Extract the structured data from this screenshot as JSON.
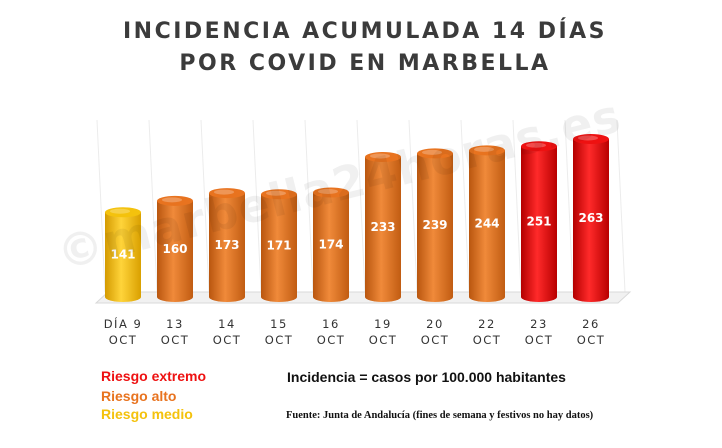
{
  "chart_data": {
    "type": "bar",
    "title_lines": [
      "INCIDENCIA ACUMULADA 14 DÍAS",
      "POR COVID EN MARBELLA"
    ],
    "categories": [
      [
        "DÍA 9",
        "OCT"
      ],
      [
        "13",
        "OCT"
      ],
      [
        "14",
        "OCT"
      ],
      [
        "15",
        "OCT"
      ],
      [
        "16",
        "OCT"
      ],
      [
        "19",
        "OCT"
      ],
      [
        "20",
        "OCT"
      ],
      [
        "22",
        "OCT"
      ],
      [
        "23",
        "OCT"
      ],
      [
        "26",
        "OCT"
      ]
    ],
    "values": [
      141,
      160,
      173,
      171,
      174,
      233,
      239,
      244,
      251,
      263
    ],
    "risk": [
      "medio",
      "alto",
      "alto",
      "alto",
      "alto",
      "alto",
      "alto",
      "alto",
      "extremo",
      "extremo"
    ],
    "ylim": [
      0,
      263
    ],
    "grid": true,
    "risk_colors": {
      "extremo": "#ee1111",
      "alto": "#e8731f",
      "medio": "#f4c20d"
    }
  },
  "legend": {
    "extreme": {
      "label": "Riesgo extremo",
      "color": "#ee1111"
    },
    "high": {
      "label": "Riesgo alto",
      "color": "#e8731f"
    },
    "medium": {
      "label": "Riesgo medio",
      "color": "#f4c20d"
    }
  },
  "formula_text": "Incidencia = casos por 100.000 habitantes",
  "source_text": "Fuente: Junta de Andalucía (fines de semana y festivos no hay datos)",
  "watermark": "©marbella24horas.es"
}
